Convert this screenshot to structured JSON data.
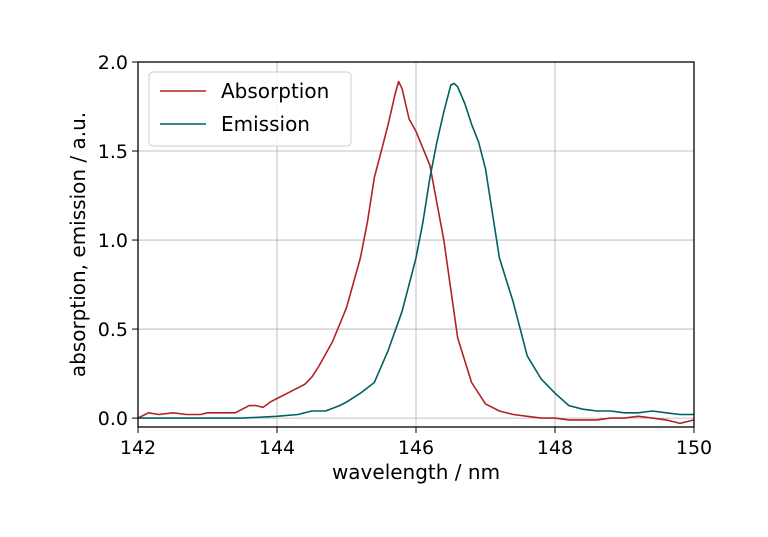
{
  "chart_data": {
    "type": "line",
    "xlabel": "wavelength / nm",
    "ylabel": "absorption, emission / a.u.",
    "xlim": [
      142,
      150
    ],
    "ylim": [
      -0.05,
      2.0
    ],
    "xticks": [
      "142",
      "144",
      "146",
      "148",
      "150"
    ],
    "yticks": [
      "0.0",
      "0.5",
      "1.0",
      "1.5",
      "2.0"
    ],
    "grid": true,
    "legend_position": "top-left",
    "series": [
      {
        "name": "Absorption",
        "color": "#b22222",
        "x": [
          142.0,
          142.15,
          142.3,
          142.5,
          142.7,
          142.9,
          143.0,
          143.2,
          143.4,
          143.6,
          143.7,
          143.8,
          143.9,
          144.0,
          144.2,
          144.4,
          144.5,
          144.6,
          144.8,
          145.0,
          145.2,
          145.3,
          145.4,
          145.5,
          145.6,
          145.7,
          145.75,
          145.8,
          145.9,
          146.0,
          146.2,
          146.4,
          146.6,
          146.8,
          147.0,
          147.2,
          147.4,
          147.6,
          147.8,
          148.0,
          148.2,
          148.4,
          148.6,
          148.8,
          149.0,
          149.2,
          149.4,
          149.6,
          149.8,
          150.0
        ],
        "y": [
          0.0,
          0.03,
          0.02,
          0.03,
          0.02,
          0.02,
          0.03,
          0.03,
          0.03,
          0.07,
          0.07,
          0.06,
          0.09,
          0.11,
          0.15,
          0.19,
          0.23,
          0.29,
          0.43,
          0.62,
          0.9,
          1.1,
          1.35,
          1.5,
          1.65,
          1.82,
          1.89,
          1.85,
          1.68,
          1.61,
          1.42,
          1.0,
          0.45,
          0.2,
          0.08,
          0.04,
          0.02,
          0.01,
          0.0,
          0.0,
          -0.01,
          -0.01,
          -0.01,
          0.0,
          0.0,
          0.01,
          0.0,
          -0.01,
          -0.03,
          -0.01
        ]
      },
      {
        "name": "Emission",
        "color": "#006060",
        "x": [
          142.0,
          142.5,
          143.0,
          143.5,
          144.0,
          144.3,
          144.5,
          144.7,
          144.9,
          145.0,
          145.2,
          145.4,
          145.6,
          145.8,
          146.0,
          146.1,
          146.2,
          146.3,
          146.4,
          146.5,
          146.55,
          146.6,
          146.7,
          146.8,
          146.9,
          147.0,
          147.2,
          147.4,
          147.6,
          147.8,
          148.0,
          148.2,
          148.4,
          148.6,
          148.8,
          149.0,
          149.2,
          149.4,
          149.6,
          149.8,
          150.0
        ],
        "y": [
          0.0,
          0.0,
          0.0,
          0.0,
          0.01,
          0.02,
          0.04,
          0.04,
          0.07,
          0.09,
          0.14,
          0.2,
          0.38,
          0.6,
          0.9,
          1.1,
          1.35,
          1.55,
          1.72,
          1.87,
          1.88,
          1.86,
          1.77,
          1.65,
          1.55,
          1.4,
          0.9,
          0.65,
          0.35,
          0.22,
          0.14,
          0.07,
          0.05,
          0.04,
          0.04,
          0.03,
          0.03,
          0.04,
          0.03,
          0.02,
          0.02
        ]
      }
    ]
  }
}
